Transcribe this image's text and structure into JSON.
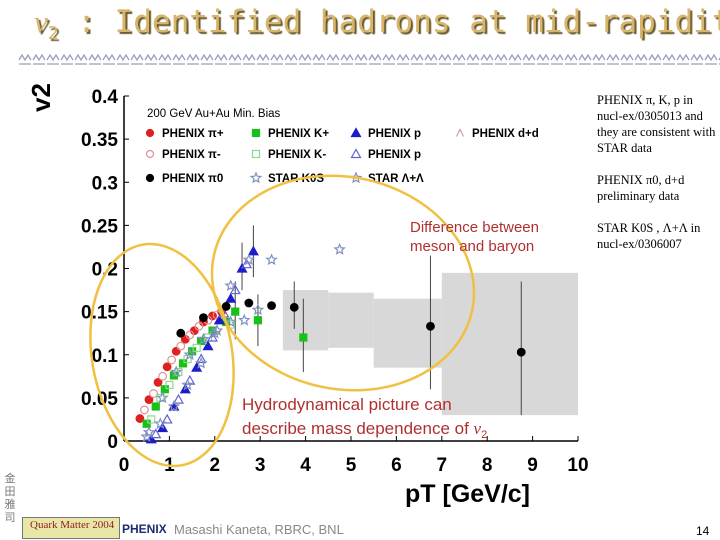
{
  "slide": {
    "title_prefix": "v",
    "title_sub": "2",
    "title_rest": " : Identified hadrons at mid-rapidity",
    "page_number": "14",
    "author": "Masashi Kaneta, RBRC, BNL",
    "badge": "Quark Matter 2004",
    "logo": "PHENIX"
  },
  "notes": {
    "note1": "PHENIX π, K, p in nucl-ex/0305013 and they are consistent with STAR data",
    "note2": "PHENIX π0, d+d preliminary data",
    "note3": "STAR K0S , Λ+Λ in nucl-ex/0306007"
  },
  "annotations": {
    "system": "200 GeV Au+Au Min. Bias",
    "difference_line1": "Difference between",
    "difference_line2": "meson and baryon",
    "hydro_line1": "Hydrodynamical picture can",
    "hydro_line2": "describe mass dependence of ",
    "hydro_v": "v",
    "hydro_sub": "2"
  },
  "colors": {
    "title": "#d7b56b",
    "ellipse": "#f0c040",
    "annotation_text": "#b03030",
    "pi_plus": "#e02020",
    "k_plus": "#18c018",
    "p": "#1c1cc8",
    "pi0": "#000000",
    "star": "#8090c0",
    "band": "#d8d8d8"
  },
  "chart_data": {
    "type": "scatter",
    "xlabel": "pT [GeV/c]",
    "ylabel": "v2",
    "xlim": [
      0,
      10
    ],
    "ylim": [
      0,
      0.4
    ],
    "x_ticks": [
      "0",
      "1",
      "2",
      "3",
      "4",
      "5",
      "6",
      "7",
      "8",
      "9",
      "10"
    ],
    "y_ticks": [
      "0",
      "0.05",
      "0.1",
      "0.15",
      "0.2",
      "0.25",
      "0.3",
      "0.35",
      "0.4"
    ],
    "legend": [
      {
        "label": "PHENIX π+",
        "marker": "circle",
        "color": "#e02020",
        "filled": true
      },
      {
        "label": "PHENIX K+",
        "marker": "square",
        "color": "#18c018",
        "filled": true
      },
      {
        "label": "PHENIX p",
        "marker": "triangle",
        "color": "#1c1cc8",
        "filled": true
      },
      {
        "label": "PHENIX d+d",
        "marker": "hat",
        "color": "#c8a0a0",
        "filled": false
      },
      {
        "label": "PHENIX π-",
        "marker": "circle",
        "color": "#e09090",
        "filled": false
      },
      {
        "label": "PHENIX K-",
        "marker": "square",
        "color": "#90d890",
        "filled": false
      },
      {
        "label": "PHENIX p",
        "marker": "triangle",
        "color": "#6060d8",
        "filled": false
      },
      {
        "label": "PHENIX π0",
        "marker": "circle",
        "color": "#000000",
        "filled": true
      },
      {
        "label": "STAR K0S",
        "marker": "star",
        "color": "#8090c0",
        "filled": false
      },
      {
        "label": "STAR Λ+Λ",
        "marker": "star",
        "color": "#8090c0",
        "filled": false
      }
    ],
    "series": [
      {
        "name": "PHENIX π+",
        "color": "#e02020",
        "marker": "circle",
        "filled": true,
        "x": [
          0.35,
          0.55,
          0.75,
          0.95,
          1.15,
          1.35,
          1.55,
          1.75,
          1.95,
          2.15
        ],
        "y": [
          0.026,
          0.048,
          0.068,
          0.086,
          0.104,
          0.118,
          0.128,
          0.138,
          0.145,
          0.15
        ]
      },
      {
        "name": "PHENIX π-",
        "color": "#e09090",
        "marker": "circle",
        "filled": false,
        "x": [
          0.45,
          0.65,
          0.85,
          1.05,
          1.25,
          1.45,
          1.65,
          1.85,
          2.05
        ],
        "y": [
          0.036,
          0.055,
          0.075,
          0.094,
          0.11,
          0.123,
          0.133,
          0.14,
          0.146
        ]
      },
      {
        "name": "PHENIX K+",
        "color": "#18c018",
        "marker": "square",
        "filled": true,
        "x": [
          0.5,
          0.7,
          0.9,
          1.1,
          1.3,
          1.5,
          1.7,
          1.95,
          2.25,
          2.45,
          2.95,
          3.95
        ],
        "y": [
          0.02,
          0.04,
          0.06,
          0.076,
          0.09,
          0.104,
          0.116,
          0.128,
          0.138,
          0.15,
          0.14,
          0.12
        ]
      },
      {
        "name": "PHENIX K-",
        "color": "#90d890",
        "marker": "square",
        "filled": false,
        "x": [
          0.6,
          0.8,
          1.0,
          1.2,
          1.4,
          1.6,
          1.85,
          2.35
        ],
        "y": [
          0.025,
          0.05,
          0.065,
          0.08,
          0.095,
          0.108,
          0.12,
          0.135
        ]
      },
      {
        "name": "PHENIX p",
        "color": "#1c1cc8",
        "marker": "triangle",
        "filled": true,
        "x": [
          0.6,
          0.85,
          1.1,
          1.35,
          1.6,
          1.85,
          2.1,
          2.35,
          2.6,
          2.85
        ],
        "y": [
          0.002,
          0.015,
          0.04,
          0.06,
          0.085,
          0.11,
          0.14,
          0.165,
          0.2,
          0.22
        ]
      },
      {
        "name": "PHENIX p̄",
        "color": "#6060d8",
        "marker": "triangle",
        "filled": false,
        "x": [
          0.7,
          0.95,
          1.2,
          1.45,
          1.7,
          1.95,
          2.2,
          2.45,
          2.7
        ],
        "y": [
          0.008,
          0.025,
          0.048,
          0.07,
          0.095,
          0.12,
          0.148,
          0.175,
          0.205
        ]
      },
      {
        "name": "PHENIX π0",
        "color": "#000000",
        "marker": "circle",
        "filled": true,
        "x": [
          1.25,
          1.75,
          2.25,
          2.75,
          3.25,
          3.75,
          6.75,
          8.75
        ],
        "y": [
          0.125,
          0.143,
          0.156,
          0.16,
          0.157,
          0.155,
          0.133,
          0.103
        ]
      },
      {
        "name": "STAR K0S",
        "color": "#8090c0",
        "marker": "star",
        "filled": false,
        "x": [
          0.55,
          0.85,
          1.15,
          1.45,
          1.75,
          2.05,
          2.35,
          2.65,
          2.95
        ],
        "y": [
          0.01,
          0.05,
          0.08,
          0.1,
          0.118,
          0.128,
          0.138,
          0.14,
          0.152
        ]
      },
      {
        "name": "STAR Λ+Λ",
        "color": "#8090c0",
        "marker": "star",
        "filled": false,
        "x": [
          0.5,
          0.8,
          1.1,
          1.4,
          1.7,
          2.0,
          2.35,
          2.75,
          3.25,
          4.75
        ],
        "y": [
          0.005,
          0.02,
          0.04,
          0.065,
          0.09,
          0.125,
          0.18,
          0.21,
          0.21,
          0.222
        ]
      }
    ],
    "bands": [
      {
        "x0": 3.5,
        "x1": 4.5,
        "y0": 0.105,
        "y1": 0.175
      },
      {
        "x0": 4.5,
        "x1": 5.5,
        "y0": 0.108,
        "y1": 0.172
      },
      {
        "x0": 5.5,
        "x1": 7.0,
        "y0": 0.085,
        "y1": 0.165
      },
      {
        "x0": 7.0,
        "x1": 10.0,
        "y0": 0.03,
        "y1": 0.195
      }
    ],
    "errors": [
      {
        "x": 6.75,
        "ylo": 0.06,
        "yhi": 0.215
      },
      {
        "x": 8.75,
        "ylo": 0.03,
        "yhi": 0.185
      },
      {
        "x": 3.75,
        "ylo": 0.13,
        "yhi": 0.185
      },
      {
        "x": 2.45,
        "ylo": 0.118,
        "yhi": 0.185
      },
      {
        "x": 2.95,
        "ylo": 0.11,
        "yhi": 0.17
      },
      {
        "x": 3.95,
        "ylo": 0.08,
        "yhi": 0.165
      },
      {
        "x": 2.6,
        "ylo": 0.175,
        "yhi": 0.23
      },
      {
        "x": 2.85,
        "ylo": 0.19,
        "yhi": 0.25
      }
    ]
  }
}
